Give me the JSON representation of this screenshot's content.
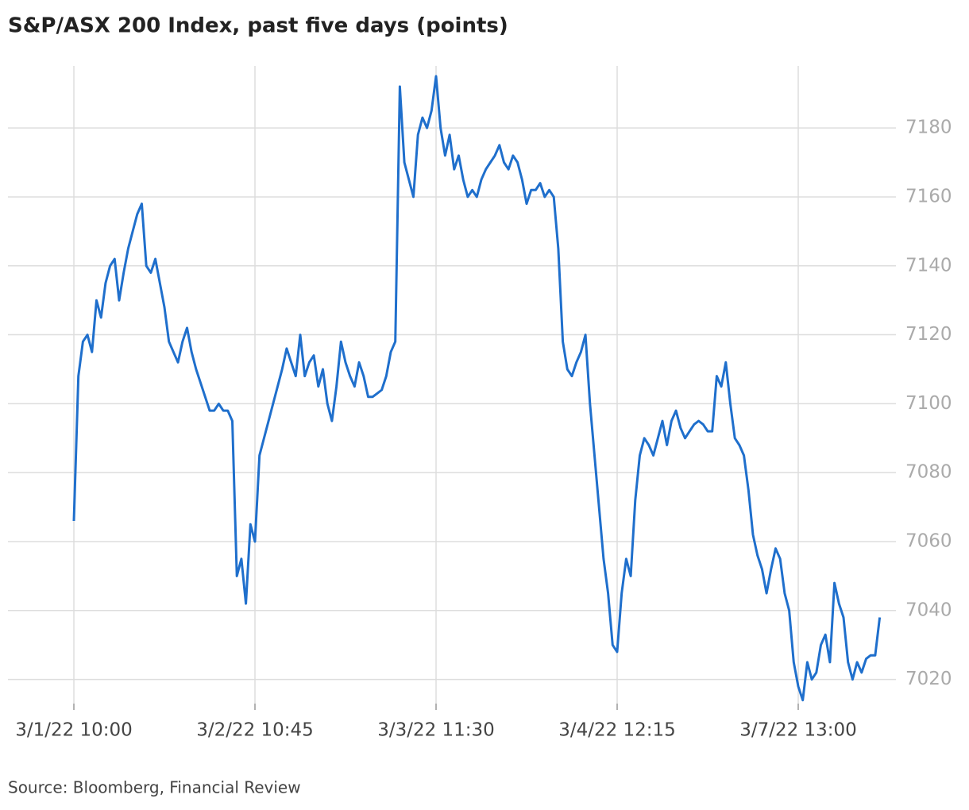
{
  "chart_data": {
    "type": "line",
    "title": "S&P/ASX 200 Index, past five days (points)",
    "source": "Source: Bloomberg, Financial Review",
    "categories": [
      "3/1/22 10:00",
      null,
      null,
      null,
      null,
      null,
      null,
      null,
      null,
      null,
      null,
      null,
      null,
      null,
      null,
      null,
      null,
      null,
      null,
      null,
      null,
      null,
      null,
      null,
      null,
      null,
      null,
      null,
      null,
      null,
      null,
      null,
      null,
      null,
      null,
      null,
      null,
      null,
      null,
      null,
      "3/2/22 10:45",
      null,
      null,
      null,
      null,
      null,
      null,
      null,
      null,
      null,
      null,
      null,
      null,
      null,
      null,
      null,
      null,
      null,
      null,
      null,
      null,
      null,
      null,
      null,
      null,
      null,
      null,
      null,
      null,
      null,
      null,
      null,
      null,
      null,
      null,
      null,
      null,
      null,
      null,
      null,
      "3/3/22 11:30",
      null,
      null,
      null,
      null,
      null,
      null,
      null,
      null,
      null,
      null,
      null,
      null,
      null,
      null,
      null,
      null,
      null,
      null,
      null,
      null,
      null,
      null,
      null,
      null,
      null,
      null,
      null,
      null,
      null,
      null,
      null,
      null,
      null,
      null,
      null,
      null,
      null,
      null,
      null,
      "3/4/22 12:15",
      null,
      null,
      null,
      null,
      null,
      null,
      null,
      null,
      null,
      null,
      null,
      null,
      null,
      null,
      null,
      null,
      null,
      null,
      null,
      null,
      null,
      null,
      null,
      null,
      null,
      null,
      null,
      null,
      null,
      null,
      null,
      null,
      null,
      null,
      null,
      null,
      null,
      null,
      null,
      "3/7/22 13:00",
      null,
      null,
      null,
      null,
      null,
      null,
      null,
      null,
      null,
      null,
      null,
      null,
      null,
      null,
      null,
      null,
      null,
      null
    ],
    "values": [
      7066,
      7108,
      7118,
      7120,
      7115,
      7130,
      7125,
      7135,
      7140,
      7142,
      7130,
      7138,
      7145,
      7150,
      7155,
      7158,
      7140,
      7138,
      7142,
      7135,
      7128,
      7118,
      7115,
      7112,
      7118,
      7122,
      7115,
      7110,
      7106,
      7102,
      7098,
      7098,
      7100,
      7098,
      7098,
      7095,
      7050,
      7055,
      7042,
      7065,
      7060,
      7085,
      7090,
      7095,
      7100,
      7105,
      7110,
      7116,
      7112,
      7108,
      7120,
      7108,
      7112,
      7114,
      7105,
      7110,
      7100,
      7095,
      7105,
      7118,
      7112,
      7108,
      7105,
      7112,
      7108,
      7102,
      7102,
      7103,
      7104,
      7108,
      7115,
      7118,
      7192,
      7170,
      7165,
      7160,
      7178,
      7183,
      7180,
      7185,
      7195,
      7180,
      7172,
      7178,
      7168,
      7172,
      7165,
      7160,
      7162,
      7160,
      7165,
      7168,
      7170,
      7172,
      7175,
      7170,
      7168,
      7172,
      7170,
      7165,
      7158,
      7162,
      7162,
      7164,
      7160,
      7162,
      7160,
      7145,
      7118,
      7110,
      7108,
      7112,
      7115,
      7120,
      7100,
      7085,
      7070,
      7055,
      7045,
      7030,
      7028,
      7045,
      7055,
      7050,
      7072,
      7085,
      7090,
      7088,
      7085,
      7090,
      7095,
      7088,
      7095,
      7098,
      7093,
      7090,
      7092,
      7094,
      7095,
      7094,
      7092,
      7092,
      7108,
      7105,
      7112,
      7100,
      7090,
      7088,
      7085,
      7075,
      7062,
      7056,
      7052,
      7045,
      7052,
      7058,
      7055,
      7045,
      7040,
      7025,
      7018,
      7014,
      7025,
      7020,
      7022,
      7030,
      7033,
      7025,
      7048,
      7042,
      7038,
      7025,
      7020,
      7025,
      7022,
      7026,
      7027,
      7027,
      7038
    ],
    "color": "#1f6fcc",
    "ylim": [
      7013,
      7198
    ],
    "yticks": [
      7020,
      7040,
      7060,
      7080,
      7100,
      7120,
      7140,
      7160,
      7180
    ],
    "grid": true
  }
}
